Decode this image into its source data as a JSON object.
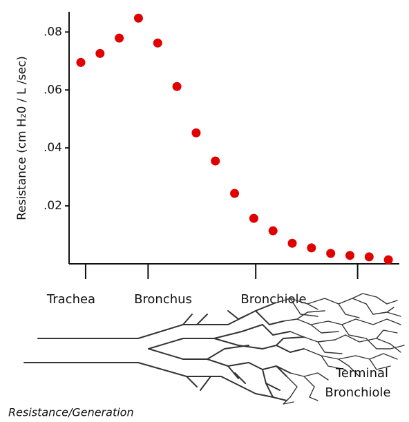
{
  "chart_data": {
    "type": "scatter",
    "y_label": "Resistance  (cm H₂0 / L /sec)",
    "color": "#e00000",
    "x": [
      1,
      2,
      3,
      4,
      5,
      6,
      7,
      8,
      9,
      10,
      11,
      12,
      13,
      14,
      15,
      16,
      17
    ],
    "values": [
      0.0695,
      0.0726,
      0.0779,
      0.0848,
      0.0762,
      0.0612,
      0.0452,
      0.0355,
      0.0243,
      0.0157,
      0.0114,
      0.0071,
      0.0055,
      0.0036,
      0.0029,
      0.0024,
      0.0014
    ],
    "xlim": [
      0.39,
      17.57
    ],
    "xticks": [
      1.25,
      4.5,
      10.1,
      15.4
    ],
    "ylim": [
      0,
      0.087
    ],
    "yticks": [
      {
        "value": 0.02,
        "label": ".02"
      },
      {
        "value": 0.04,
        "label": ".04"
      },
      {
        "value": 0.06,
        "label": ".06"
      },
      {
        "value": 0.08,
        "label": ".08"
      }
    ],
    "region_labels": [
      "Trachea",
      "Bronchus",
      "Bronchiole"
    ],
    "diagram_label": [
      "Terminal",
      "Bronchiole"
    ],
    "caption": "Resistance/Generation"
  }
}
